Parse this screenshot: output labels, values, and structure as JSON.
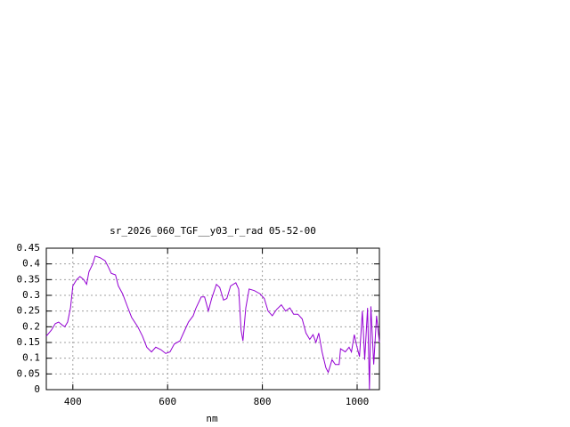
{
  "chart_data": {
    "type": "line",
    "title": "sr_2026_060_TGF__y03_r_rad 05-52-00",
    "xlabel": "nm",
    "xlim": [
      344,
      1047
    ],
    "xticks": [
      400,
      600,
      800,
      1000
    ],
    "ylim": [
      0,
      0.45
    ],
    "yticks": [
      0,
      0.05,
      0.1,
      0.15,
      0.2,
      0.25,
      0.3,
      0.35,
      0.4,
      0.45
    ],
    "grid": true,
    "x": [
      344,
      355,
      363,
      370,
      378,
      383,
      389,
      395,
      400,
      408,
      415,
      423,
      429,
      434,
      442,
      447,
      457,
      468,
      475,
      481,
      490,
      496,
      505,
      515,
      524,
      537,
      547,
      556,
      566,
      575,
      586,
      596,
      605,
      614,
      626,
      635,
      644,
      654,
      660,
      671,
      678,
      686,
      693,
      703,
      710,
      718,
      725,
      733,
      744,
      750,
      755,
      759,
      765,
      772,
      783,
      795,
      804,
      812,
      821,
      830,
      840,
      849,
      858,
      866,
      875,
      884,
      892,
      900,
      907,
      913,
      919,
      926,
      934,
      939,
      947,
      954,
      962,
      965,
      975,
      983,
      988,
      994,
      999,
      1005,
      1011,
      1016,
      1022,
      1026,
      1029,
      1035,
      1041,
      1047
    ],
    "series": [
      {
        "color": "#9400d3",
        "values": [
          0.17,
          0.19,
          0.21,
          0.215,
          0.205,
          0.2,
          0.215,
          0.26,
          0.33,
          0.35,
          0.36,
          0.35,
          0.335,
          0.375,
          0.4,
          0.425,
          0.42,
          0.41,
          0.39,
          0.37,
          0.365,
          0.33,
          0.305,
          0.265,
          0.23,
          0.2,
          0.17,
          0.135,
          0.12,
          0.135,
          0.127,
          0.115,
          0.12,
          0.145,
          0.155,
          0.185,
          0.215,
          0.235,
          0.26,
          0.295,
          0.295,
          0.25,
          0.29,
          0.335,
          0.325,
          0.285,
          0.29,
          0.33,
          0.34,
          0.32,
          0.19,
          0.155,
          0.26,
          0.32,
          0.315,
          0.305,
          0.29,
          0.25,
          0.235,
          0.255,
          0.27,
          0.25,
          0.26,
          0.24,
          0.24,
          0.225,
          0.18,
          0.16,
          0.175,
          0.15,
          0.18,
          0.12,
          0.07,
          0.055,
          0.095,
          0.08,
          0.08,
          0.13,
          0.12,
          0.135,
          0.12,
          0.175,
          0.14,
          0.105,
          0.25,
          0.095,
          0.26,
          0,
          0.265,
          0.08,
          0.235,
          0.15
        ]
      }
    ]
  }
}
